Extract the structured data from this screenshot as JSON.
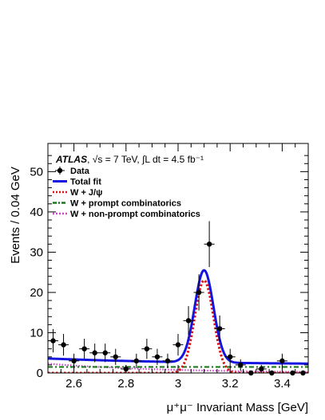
{
  "chart_data": {
    "type": "scatter",
    "header": {
      "experiment": "ATLAS",
      "energy": "√s = 7 TeV,",
      "lumi": "∫L dt = 4.5 fb⁻¹"
    },
    "xlabel": "μ⁺μ⁻ Invariant Mass [GeV]",
    "ylabel": "Events / 0.04 GeV",
    "xlim": [
      2.5,
      3.5
    ],
    "ylim": [
      0,
      57
    ],
    "x_ticks": [
      2.6,
      2.8,
      3,
      3.2,
      3.4
    ],
    "x_tick_labels": [
      "2.6",
      "2.8",
      "3",
      "3.2",
      "3.4"
    ],
    "y_ticks": [
      0,
      10,
      20,
      30,
      40,
      50
    ],
    "y_tick_labels": [
      "0",
      "10",
      "20",
      "30",
      "40",
      "50"
    ],
    "legend_position": "top-left",
    "legend": [
      {
        "key": "data",
        "label": "Data",
        "style": "marker",
        "color": "#000000"
      },
      {
        "key": "total",
        "label": "Total fit",
        "style": "solid",
        "color": "#1515e0"
      },
      {
        "key": "wjpsi",
        "label": "W + J/ψ",
        "style": "dotted",
        "color": "#e01010"
      },
      {
        "key": "prompt",
        "label": "W + prompt combinatorics",
        "style": "dashdot",
        "color": "#1a7a1a"
      },
      {
        "key": "nonprompt",
        "label": "W + non-prompt combinatorics",
        "style": "dotted",
        "color": "#cc44cc"
      }
    ],
    "data_points": {
      "x": [
        2.52,
        2.56,
        2.6,
        2.64,
        2.68,
        2.72,
        2.76,
        2.8,
        2.84,
        2.88,
        2.92,
        2.96,
        3.0,
        3.04,
        3.08,
        3.12,
        3.16,
        3.2,
        3.24,
        3.28,
        3.32,
        3.36,
        3.4,
        3.44,
        3.48
      ],
      "y": [
        8,
        7,
        3,
        6,
        5,
        5,
        4,
        1,
        3,
        6,
        4,
        3,
        7,
        13,
        20,
        32,
        11,
        4,
        2,
        0,
        1,
        0,
        3,
        0,
        0
      ],
      "yerr": [
        2.9,
        2.7,
        1.8,
        2.5,
        2.3,
        2.3,
        2.0,
        1.0,
        1.8,
        2.5,
        2.0,
        1.8,
        2.7,
        3.6,
        4.5,
        5.7,
        3.3,
        2.0,
        1.4,
        0,
        1.0,
        0,
        1.8,
        0,
        0
      ]
    },
    "fit": {
      "peak_mass": 3.1,
      "total_peak": 25.5,
      "jpsi_peak": 23,
      "width_sigma": 0.036,
      "prompt_level": 1.5,
      "nonprompt_start": 2.3,
      "total_background_start": 3.6,
      "total_background_end": 2.0
    }
  }
}
